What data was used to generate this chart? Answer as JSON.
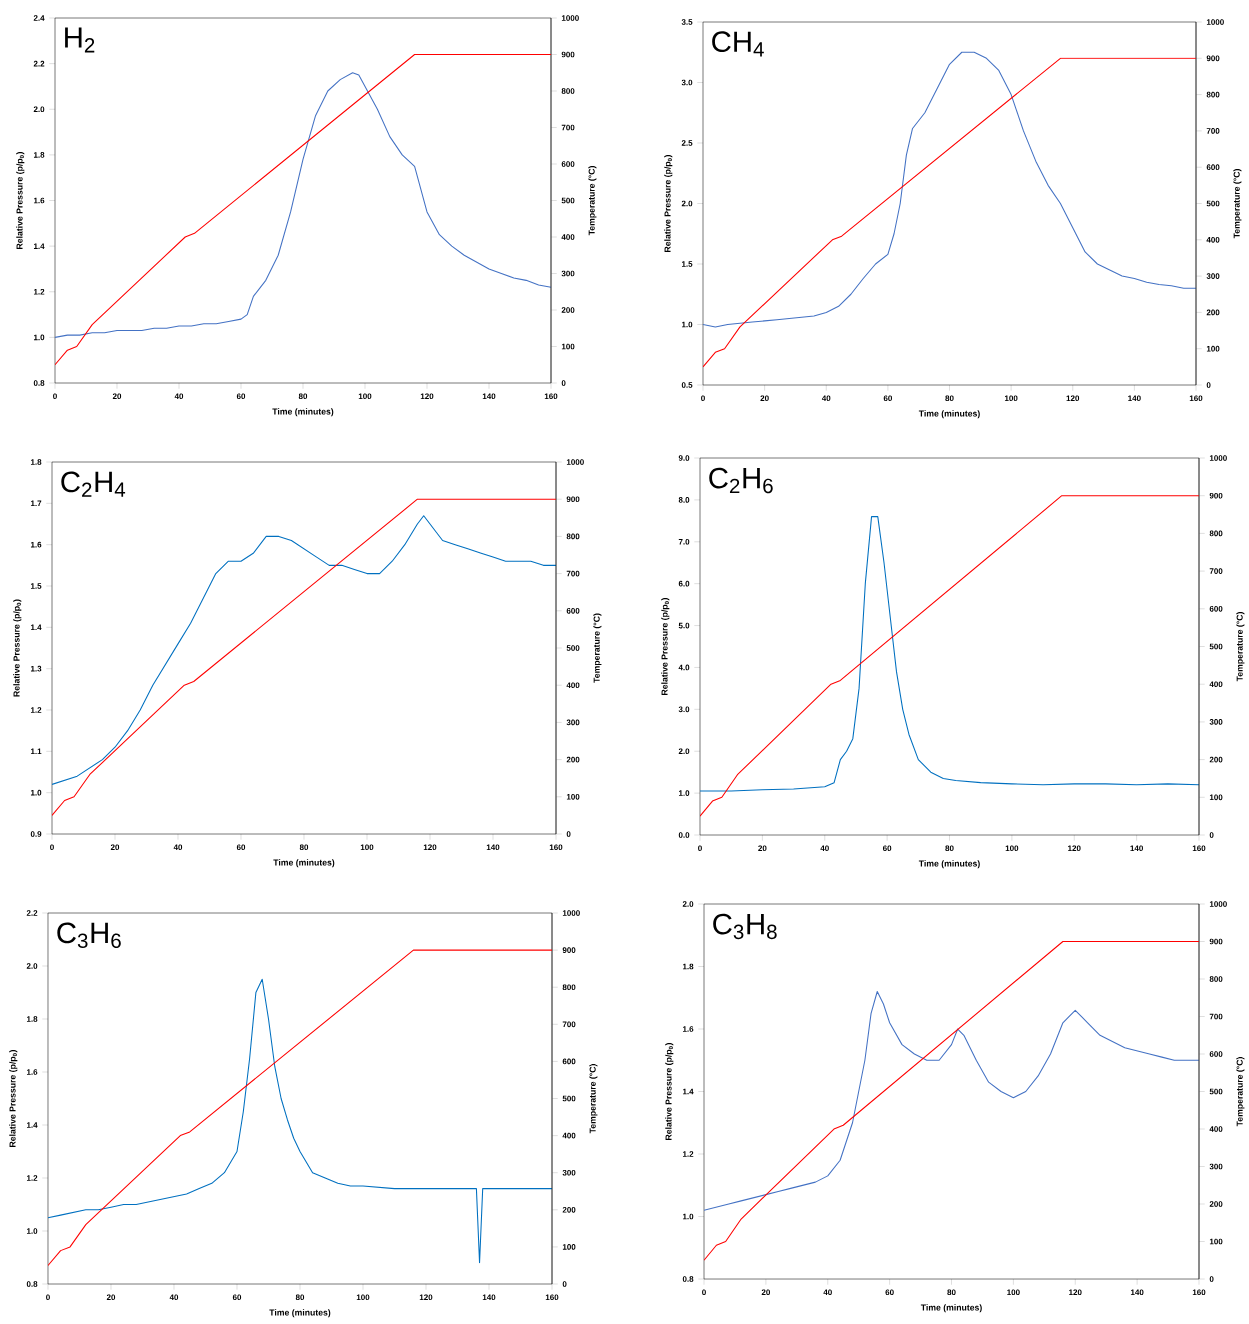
{
  "chart_data": [
    {
      "type": "line",
      "title": "H$_{2}$",
      "xlabel": "Time (minutes)",
      "ylabel": "Relative Pressure (p/p$_{0}$)",
      "y2label": "Temperature (°C)",
      "xlim": [
        0,
        160
      ],
      "xticks": [
        0,
        20,
        40,
        60,
        80,
        100,
        120,
        140,
        160
      ],
      "ylim": [
        0.8,
        2.4
      ],
      "yticks": [
        {
          "value": 0.8,
          "label": "0.8"
        },
        {
          "value": 1.0,
          "label": "1.0"
        },
        {
          "value": 1.2,
          "label": "1.2"
        },
        {
          "value": 1.4,
          "label": "1.4"
        },
        {
          "value": 1.6,
          "label": "1.6"
        },
        {
          "value": 1.8,
          "label": "1.8"
        },
        {
          "value": 2.0,
          "label": "2.0"
        },
        {
          "value": 2.2,
          "label": "2.2"
        },
        {
          "value": 2.4,
          "label": "2.4"
        }
      ],
      "y2lim": [
        0,
        1000
      ],
      "y2ticks": [
        0,
        100,
        200,
        300,
        400,
        500,
        600,
        700,
        800,
        900,
        1000
      ],
      "series": [
        {
          "color": "#4472c4",
          "x": [
            0,
            4,
            8,
            12,
            16,
            20,
            24,
            28,
            32,
            36,
            40,
            44,
            48,
            52,
            56,
            60,
            62,
            64,
            68,
            72,
            76,
            80,
            84,
            88,
            92,
            96,
            98,
            100,
            104,
            108,
            112,
            116,
            118,
            120,
            124,
            128,
            132,
            136,
            140,
            144,
            148,
            152,
            156,
            160
          ],
          "values": [
            1.0,
            1.01,
            1.01,
            1.02,
            1.02,
            1.03,
            1.03,
            1.03,
            1.04,
            1.04,
            1.05,
            1.05,
            1.06,
            1.06,
            1.07,
            1.08,
            1.1,
            1.18,
            1.25,
            1.36,
            1.55,
            1.78,
            1.97,
            2.08,
            2.13,
            2.16,
            2.15,
            2.1,
            2.0,
            1.88,
            1.8,
            1.75,
            1.65,
            1.55,
            1.45,
            1.4,
            1.36,
            1.33,
            1.3,
            1.28,
            1.26,
            1.25,
            1.23,
            1.22
          ]
        },
        {
          "color": "#ff0000",
          "axis": "y2",
          "x": [
            0,
            4,
            7,
            12,
            42,
            45,
            116,
            160
          ],
          "values": [
            50,
            90,
            100,
            160,
            400,
            410,
            900,
            900
          ]
        }
      ]
    },
    {
      "type": "line",
      "title": "CH$_{4}$",
      "xlabel": "Time (minutes)",
      "ylabel": "Relative Pressure (p/p$_{0}$)",
      "y2label": "Temperature (°C)",
      "xlim": [
        0,
        160
      ],
      "xticks": [
        0,
        20,
        40,
        60,
        80,
        100,
        120,
        140,
        160
      ],
      "ylim": [
        0.5,
        3.5
      ],
      "yticks": [
        0.5,
        {
          "value": 1.0,
          "label": "1.0"
        },
        1.5,
        {
          "value": 2.0,
          "label": "2.0"
        },
        2.5,
        {
          "value": 3.0,
          "label": "3.0"
        },
        3.5
      ],
      "y2lim": [
        0,
        1000
      ],
      "y2ticks": [
        0,
        100,
        200,
        300,
        400,
        500,
        600,
        700,
        800,
        900,
        1000
      ],
      "series": [
        {
          "color": "#4472c4",
          "x": [
            0,
            4,
            8,
            12,
            16,
            20,
            24,
            28,
            32,
            36,
            40,
            44,
            48,
            52,
            56,
            60,
            62,
            64,
            66,
            68,
            72,
            76,
            80,
            84,
            88,
            92,
            96,
            100,
            104,
            108,
            112,
            116,
            120,
            124,
            128,
            132,
            136,
            140,
            144,
            148,
            152,
            156,
            160
          ],
          "values": [
            1.0,
            0.98,
            1.0,
            1.01,
            1.02,
            1.03,
            1.04,
            1.05,
            1.06,
            1.07,
            1.1,
            1.15,
            1.25,
            1.38,
            1.5,
            1.58,
            1.75,
            2.0,
            2.4,
            2.62,
            2.75,
            2.95,
            3.15,
            3.25,
            3.25,
            3.2,
            3.1,
            2.9,
            2.6,
            2.35,
            2.15,
            2.0,
            1.8,
            1.6,
            1.5,
            1.45,
            1.4,
            1.38,
            1.35,
            1.33,
            1.32,
            1.3,
            1.3
          ]
        },
        {
          "color": "#ff0000",
          "axis": "y2",
          "x": [
            0,
            4,
            7,
            12,
            42,
            45,
            116,
            160
          ],
          "values": [
            50,
            90,
            100,
            160,
            400,
            410,
            900,
            900
          ]
        }
      ]
    },
    {
      "type": "line",
      "title": "C$_{2}$H$_{4}$",
      "xlabel": "Time (minutes)",
      "ylabel": "Relative Pressure (p/p$_{0}$)",
      "y2label": "Temperature (°C)",
      "xlim": [
        0,
        160
      ],
      "xticks": [
        0,
        20,
        40,
        60,
        80,
        100,
        120,
        140,
        160
      ],
      "ylim": [
        0.9,
        1.8
      ],
      "yticks": [
        0.9,
        {
          "value": 1.0,
          "label": "1.0"
        },
        1.1,
        1.2,
        1.3,
        1.4,
        1.5,
        1.6,
        1.7,
        1.8
      ],
      "y2lim": [
        0,
        1000
      ],
      "y2ticks": [
        0,
        100,
        200,
        300,
        400,
        500,
        600,
        700,
        800,
        900,
        1000
      ],
      "series": [
        {
          "color": "#0070c0",
          "x": [
            0,
            4,
            8,
            12,
            16,
            20,
            24,
            28,
            32,
            36,
            40,
            44,
            48,
            52,
            56,
            60,
            64,
            68,
            72,
            76,
            80,
            84,
            88,
            92,
            96,
            100,
            104,
            108,
            112,
            116,
            118,
            120,
            124,
            128,
            132,
            136,
            140,
            144,
            148,
            152,
            156,
            160
          ],
          "values": [
            1.02,
            1.03,
            1.04,
            1.06,
            1.08,
            1.11,
            1.15,
            1.2,
            1.26,
            1.31,
            1.36,
            1.41,
            1.47,
            1.53,
            1.56,
            1.56,
            1.58,
            1.62,
            1.62,
            1.61,
            1.59,
            1.57,
            1.55,
            1.55,
            1.54,
            1.53,
            1.53,
            1.56,
            1.6,
            1.65,
            1.67,
            1.65,
            1.61,
            1.6,
            1.59,
            1.58,
            1.57,
            1.56,
            1.56,
            1.56,
            1.55,
            1.55
          ]
        },
        {
          "color": "#ff0000",
          "axis": "y2",
          "x": [
            0,
            4,
            7,
            12,
            42,
            45,
            116,
            160
          ],
          "values": [
            50,
            90,
            100,
            160,
            400,
            410,
            900,
            900
          ]
        }
      ]
    },
    {
      "type": "line",
      "title": "C$_{2}$H$_{6}$",
      "xlabel": "Time (minutes)",
      "ylabel": "Relative Pressure (p/p$_{0}$)",
      "y2label": "Temperature (°C)",
      "xlim": [
        0,
        160
      ],
      "xticks": [
        0,
        20,
        40,
        60,
        80,
        100,
        120,
        140,
        160
      ],
      "ylim": [
        0,
        9
      ],
      "yticks": [
        {
          "value": 0,
          "label": "0.0"
        },
        {
          "value": 1,
          "label": "1.0"
        },
        {
          "value": 2,
          "label": "2.0"
        },
        {
          "value": 3,
          "label": "3.0"
        },
        {
          "value": 4,
          "label": "4.0"
        },
        {
          "value": 5,
          "label": "5.0"
        },
        {
          "value": 6,
          "label": "6.0"
        },
        {
          "value": 7,
          "label": "7.0"
        },
        {
          "value": 8,
          "label": "8.0"
        },
        {
          "value": 9,
          "label": "9.0"
        }
      ],
      "y2lim": [
        0,
        1000
      ],
      "y2ticks": [
        0,
        100,
        200,
        300,
        400,
        500,
        600,
        700,
        800,
        900,
        1000
      ],
      "series": [
        {
          "color": "#0070c0",
          "x": [
            0,
            10,
            20,
            30,
            40,
            43,
            45,
            47,
            49,
            51,
            53,
            55,
            57,
            59,
            61,
            63,
            65,
            67,
            70,
            74,
            78,
            82,
            90,
            100,
            110,
            120,
            130,
            140,
            150,
            160
          ],
          "values": [
            1.05,
            1.05,
            1.08,
            1.1,
            1.15,
            1.25,
            1.8,
            2.0,
            2.3,
            3.5,
            6.0,
            7.6,
            7.6,
            6.5,
            5.2,
            3.9,
            3.0,
            2.4,
            1.8,
            1.5,
            1.35,
            1.3,
            1.25,
            1.22,
            1.2,
            1.22,
            1.22,
            1.2,
            1.22,
            1.2
          ]
        },
        {
          "color": "#ff0000",
          "axis": "y2",
          "x": [
            0,
            4,
            7,
            12,
            42,
            45,
            116,
            160
          ],
          "values": [
            50,
            90,
            100,
            160,
            400,
            410,
            900,
            900
          ]
        }
      ]
    },
    {
      "type": "line",
      "title": "C$_{3}$H$_{6}$",
      "xlabel": "Time (minutes)",
      "ylabel": "Relative Pressure (p/p$_{0}$)",
      "y2label": "Temperature (°C)",
      "xlim": [
        0,
        160
      ],
      "xticks": [
        0,
        20,
        40,
        60,
        80,
        100,
        120,
        140,
        160
      ],
      "ylim": [
        0.8,
        2.2
      ],
      "yticks": [
        {
          "value": 0.8,
          "label": "0.8"
        },
        {
          "value": 1.0,
          "label": "1.0"
        },
        {
          "value": 1.2,
          "label": "1.2"
        },
        {
          "value": 1.4,
          "label": "1.4"
        },
        {
          "value": 1.6,
          "label": "1.6"
        },
        {
          "value": 1.8,
          "label": "1.8"
        },
        {
          "value": 2.0,
          "label": "2.0"
        },
        {
          "value": 2.2,
          "label": "2.2"
        }
      ],
      "y2lim": [
        0,
        1000
      ],
      "y2ticks": [
        0,
        100,
        200,
        300,
        400,
        500,
        600,
        700,
        800,
        900,
        1000
      ],
      "series": [
        {
          "color": "#0070c0",
          "x": [
            0,
            4,
            8,
            12,
            16,
            20,
            24,
            28,
            32,
            36,
            40,
            44,
            48,
            52,
            56,
            60,
            62,
            64,
            66,
            68,
            70,
            72,
            74,
            76,
            78,
            80,
            84,
            88,
            92,
            96,
            100,
            110,
            120,
            130,
            136,
            137,
            138,
            140,
            150,
            160
          ],
          "values": [
            1.05,
            1.06,
            1.07,
            1.08,
            1.08,
            1.09,
            1.1,
            1.1,
            1.11,
            1.12,
            1.13,
            1.14,
            1.16,
            1.18,
            1.22,
            1.3,
            1.45,
            1.65,
            1.9,
            1.95,
            1.8,
            1.62,
            1.5,
            1.42,
            1.35,
            1.3,
            1.22,
            1.2,
            1.18,
            1.17,
            1.17,
            1.16,
            1.16,
            1.16,
            1.16,
            0.88,
            1.16,
            1.16,
            1.16,
            1.16
          ]
        },
        {
          "color": "#ff0000",
          "axis": "y2",
          "x": [
            0,
            4,
            7,
            12,
            42,
            45,
            116,
            160
          ],
          "values": [
            50,
            90,
            100,
            160,
            400,
            410,
            900,
            900
          ]
        }
      ]
    },
    {
      "type": "line",
      "title": "C$_{3}$H$_{8}$",
      "xlabel": "Time (minutes)",
      "ylabel": "Relative Pressure (p/p$_{0}$)",
      "y2label": "Temperature (°C)",
      "xlim": [
        0,
        160
      ],
      "xticks": [
        0,
        20,
        40,
        60,
        80,
        100,
        120,
        140,
        160
      ],
      "ylim": [
        0.8,
        2.0
      ],
      "yticks": [
        {
          "value": 0.8,
          "label": "0.8"
        },
        {
          "value": 1.0,
          "label": "1.0"
        },
        {
          "value": 1.2,
          "label": "1.2"
        },
        {
          "value": 1.4,
          "label": "1.4"
        },
        {
          "value": 1.6,
          "label": "1.6"
        },
        {
          "value": 1.8,
          "label": "1.8"
        },
        {
          "value": 2.0,
          "label": "2.0"
        }
      ],
      "y2lim": [
        0,
        1000
      ],
      "y2ticks": [
        0,
        100,
        200,
        300,
        400,
        500,
        600,
        700,
        800,
        900,
        1000
      ],
      "series": [
        {
          "color": "#4472c4",
          "x": [
            0,
            4,
            8,
            12,
            16,
            20,
            24,
            28,
            32,
            36,
            40,
            44,
            48,
            52,
            54,
            56,
            58,
            60,
            64,
            68,
            72,
            76,
            80,
            82,
            84,
            88,
            92,
            96,
            100,
            104,
            108,
            112,
            116,
            120,
            124,
            128,
            132,
            136,
            140,
            144,
            148,
            152,
            156,
            160
          ],
          "values": [
            1.02,
            1.03,
            1.04,
            1.05,
            1.06,
            1.07,
            1.08,
            1.09,
            1.1,
            1.11,
            1.13,
            1.18,
            1.3,
            1.5,
            1.65,
            1.72,
            1.68,
            1.62,
            1.55,
            1.52,
            1.5,
            1.5,
            1.55,
            1.6,
            1.58,
            1.5,
            1.43,
            1.4,
            1.38,
            1.4,
            1.45,
            1.52,
            1.62,
            1.66,
            1.62,
            1.58,
            1.56,
            1.54,
            1.53,
            1.52,
            1.51,
            1.5,
            1.5,
            1.5
          ]
        },
        {
          "color": "#ff0000",
          "axis": "y2",
          "x": [
            0,
            4,
            7,
            12,
            42,
            45,
            116,
            160
          ],
          "values": [
            50,
            90,
            100,
            160,
            400,
            410,
            900,
            900
          ]
        }
      ]
    }
  ]
}
